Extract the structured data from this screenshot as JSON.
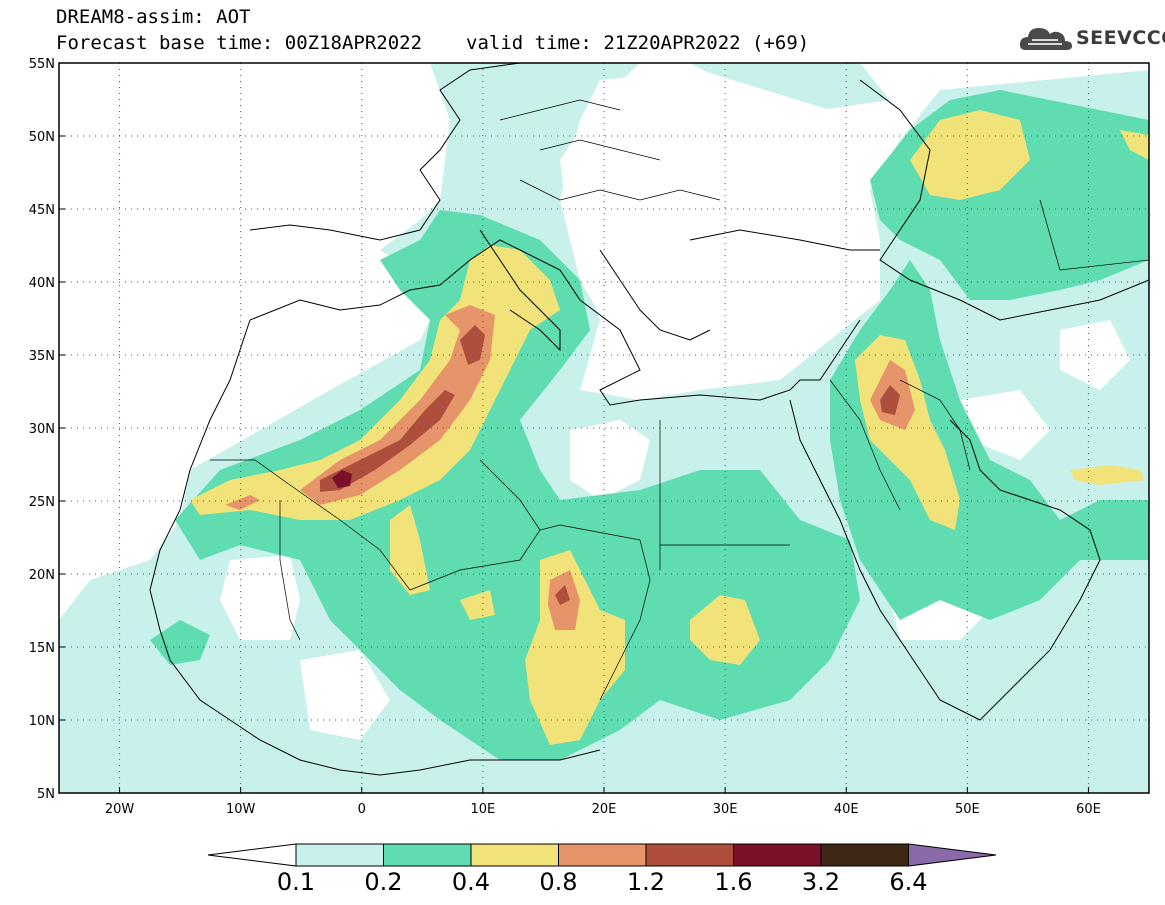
{
  "header": {
    "line1": "DREAM8-assim: AOT",
    "base_time": "Forecast base time: 00Z18APR2022",
    "valid_time": "valid time: 21Z20APR2022 (+69)"
  },
  "logo": {
    "text": "SEEVCCC",
    "icon": "cloud-icon"
  },
  "map": {
    "lat_ticks": [
      "55N",
      "50N",
      "45N",
      "40N",
      "35N",
      "30N",
      "25N",
      "20N",
      "15N",
      "10N",
      "5N"
    ],
    "lon_ticks": [
      "20W",
      "10W",
      "0",
      "10E",
      "20E",
      "30E",
      "40E",
      "50E",
      "60E"
    ],
    "lat_range": [
      5,
      55
    ],
    "lon_range": [
      -25,
      65
    ],
    "grid": "dotted"
  },
  "colorbar": {
    "levels": [
      "0.1",
      "0.2",
      "0.4",
      "0.8",
      "1.2",
      "1.6",
      "3.2",
      "6.4"
    ],
    "colors": [
      "#ffffff",
      "#c9f1ec",
      "#5fdcb0",
      "#f2e27a",
      "#e6956a",
      "#ae4e3c",
      "#7a0f28",
      "#3d2815",
      "#8a6aa8"
    ]
  }
}
